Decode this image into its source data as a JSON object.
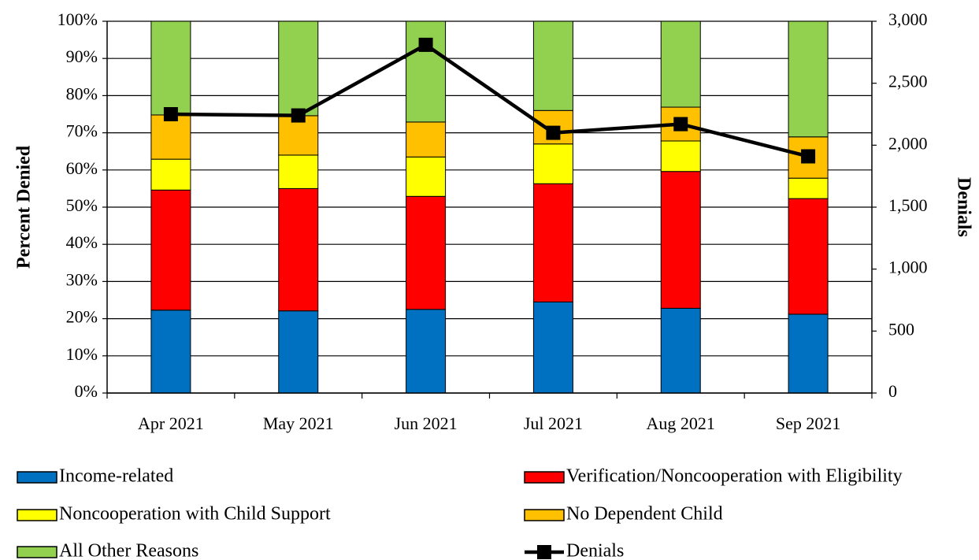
{
  "chart_data": {
    "type": "bar",
    "stacked": true,
    "categories": [
      "Apr 2021",
      "May 2021",
      "Jun 2021",
      "Jul 2021",
      "Aug 2021",
      "Sep 2021"
    ],
    "series": [
      {
        "name": "Income-related",
        "color": "#0070C0",
        "values": [
          22.3,
          22.1,
          22.5,
          24.5,
          22.8,
          21.2
        ]
      },
      {
        "name": "Verification/Noncooperation with Eligibility",
        "color": "#FF0000",
        "values": [
          32.3,
          32.9,
          30.4,
          31.8,
          36.8,
          31.1
        ]
      },
      {
        "name": "Noncooperation with Child Support",
        "color": "#FFFF00",
        "values": [
          8.3,
          9.0,
          10.6,
          10.7,
          8.2,
          5.5
        ]
      },
      {
        "name": "No Dependent Child",
        "color": "#FFC000",
        "values": [
          11.9,
          10.6,
          9.4,
          9.0,
          9.1,
          11.1
        ]
      },
      {
        "name": "All Other Reasons",
        "color": "#92D050",
        "values": [
          25.2,
          25.4,
          27.1,
          24.0,
          23.1,
          31.1
        ]
      }
    ],
    "line_series": {
      "name": "Denials",
      "color": "#000000",
      "axis": "right",
      "values": [
        2250,
        2240,
        2810,
        2100,
        2170,
        1910
      ]
    },
    "ylabel": "Percent Denied",
    "y2label": "Denials",
    "ylim": [
      0,
      100
    ],
    "y2lim": [
      0,
      3000
    ],
    "y_ticks": [
      "0%",
      "10%",
      "20%",
      "30%",
      "40%",
      "50%",
      "60%",
      "70%",
      "80%",
      "90%",
      "100%"
    ],
    "y2_ticks": [
      "0",
      "500",
      "1,000",
      "1,500",
      "2,000",
      "2,500",
      "3,000"
    ],
    "grid": true,
    "legend_position": "bottom"
  }
}
